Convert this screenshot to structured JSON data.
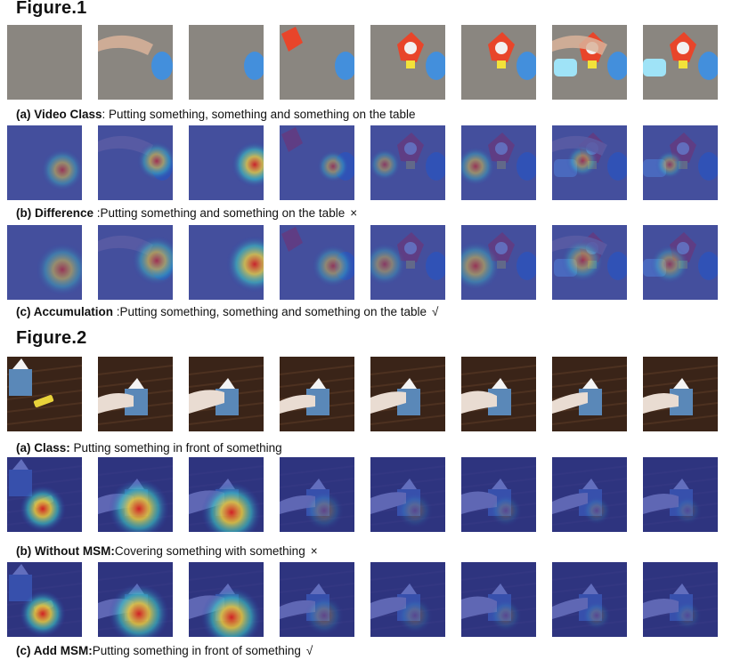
{
  "figures": [
    {
      "title": "Figure.1",
      "rows": [
        {
          "label": "(a) Video Class",
          "text": ": Putting something, something and something on the table",
          "mark": "",
          "kind": "photo"
        },
        {
          "label": "(b) Difference ",
          "text": ":Putting something and something on the table",
          "mark": "×",
          "kind": "heat"
        },
        {
          "label": "(c) Accumulation ",
          "text": ":Putting something, something and something on the table",
          "mark": "√",
          "kind": "heat"
        }
      ]
    },
    {
      "title": "Figure.2",
      "rows": [
        {
          "label": "(a) Class:",
          "text": " Putting something in front of something",
          "mark": "",
          "kind": "photo"
        },
        {
          "label": "(b) Without MSM:",
          "text": "Covering something with something",
          "mark": "×",
          "kind": "heat"
        },
        {
          "label": "(c) Add MSM:",
          "text": "Putting something in front of something",
          "mark": "√",
          "kind": "heat"
        }
      ]
    }
  ],
  "colors": {
    "carpet": "#8a8680",
    "table_wood": "#3a2418",
    "heat_base": "#2a3aa8",
    "heat_hot": "#d81e1e",
    "toy_red": "#e8452a",
    "toy_blue": "#3f8fe0",
    "tissue_box": "#5a88b8"
  },
  "icons": [
    "toy-icon",
    "tissue-box-icon",
    "hand-icon"
  ]
}
